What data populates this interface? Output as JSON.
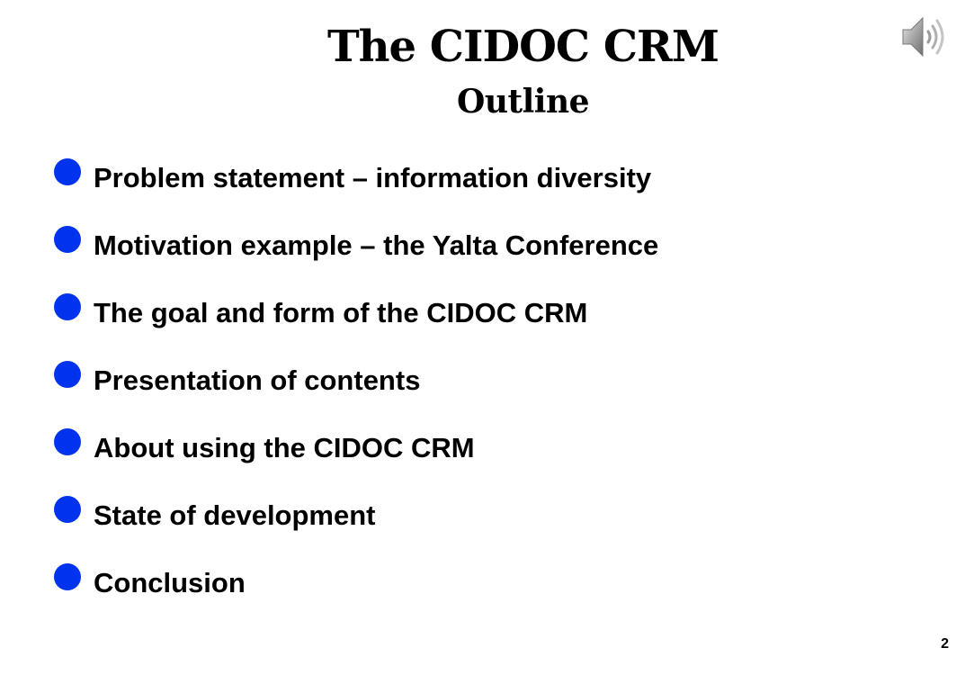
{
  "slide": {
    "title": "The CIDOC CRM",
    "subtitle": "Outline",
    "bullet_color": "#0033ee",
    "audio_icon": "speaker-icon",
    "bullets": [
      "Problem statement – information diversity",
      "Motivation example – the Yalta Conference",
      "The goal and form of the CIDOC CRM",
      "Presentation of contents",
      "About using the CIDOC CRM",
      "State of development",
      "Conclusion"
    ],
    "page_number": "2"
  }
}
